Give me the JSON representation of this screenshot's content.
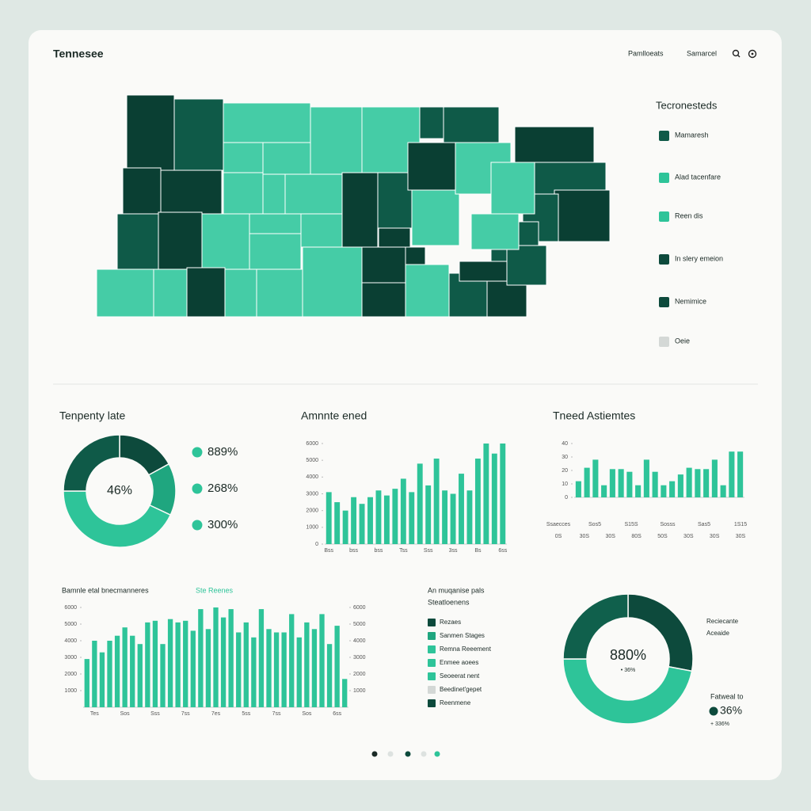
{
  "header": {
    "title": "Tennesee",
    "nav": [
      "Pamlloeats",
      "Samarcel"
    ]
  },
  "map_legend": {
    "title": "Tecronesteds",
    "items": [
      {
        "label": "Mamaresh",
        "color": "#0f5a48"
      },
      {
        "label": "Alad tacenfare",
        "color": "#2ec499"
      },
      {
        "label": "Reen dis",
        "color": "#2ec499"
      },
      {
        "label": "In slery emeion",
        "color": "#0d4a3c"
      },
      {
        "label": "Nemimice",
        "color": "#0d4a3c"
      },
      {
        "label": "Oeie",
        "color": "#d4d8d6"
      }
    ]
  },
  "side_legend": {
    "title": "An muqanise pals",
    "subtitle": "Steatloenens",
    "items": [
      {
        "label": "Rezaes",
        "color": "#0d4a3c"
      },
      {
        "label": "Sanmen Stages",
        "color": "#1fa67f"
      },
      {
        "label": "Remna Reeement",
        "color": "#2ec499"
      },
      {
        "label": "Enmee aoees",
        "color": "#2ec499"
      },
      {
        "label": "Seoeerat nent",
        "color": "#2ec499"
      },
      {
        "label": "Beedinet'gepet",
        "color": "#d4d8d6"
      },
      {
        "label": "Reenmene",
        "color": "#0d4a3c"
      }
    ]
  },
  "chart_data": [
    {
      "type": "pie",
      "title": "Tenpenty late",
      "center_label": "46%",
      "values": [
        17,
        15,
        43,
        25
      ],
      "colors": [
        "#0d4a3c",
        "#1fa67f",
        "#2ec499",
        "#0f5a48"
      ],
      "legend": [
        "889%",
        "268%",
        "300%"
      ],
      "legend_color": "#2ec499"
    },
    {
      "type": "bar",
      "title": "Amnnte ened",
      "color": "#2ec499",
      "categories": [
        "Bss",
        null,
        null,
        "bss",
        null,
        null,
        "bss",
        null,
        null,
        "Tss",
        null,
        null,
        "Sss",
        null,
        null,
        "3ss",
        null,
        null,
        "Bs",
        null,
        null,
        "6ss"
      ],
      "values": [
        3100,
        2500,
        2000,
        2800,
        2400,
        2800,
        3200,
        2900,
        3300,
        3900,
        3100,
        4800,
        3500,
        5100,
        3200,
        3000,
        4200,
        3200,
        5100,
        6000,
        5400,
        6000
      ],
      "ylim": [
        0,
        6000
      ],
      "yticks": [
        0,
        1000,
        2000,
        3000,
        4000,
        5000,
        6000
      ]
    },
    {
      "type": "bar",
      "title": "Tneed Astiemtes",
      "color": "#2ec499",
      "values": [
        12,
        22,
        28,
        9,
        21,
        21,
        19,
        9,
        28,
        19,
        9,
        12,
        17,
        22,
        21,
        21,
        28,
        9,
        34,
        34
      ],
      "ylim": [
        0,
        40
      ],
      "yticks": [
        0,
        10,
        20,
        30,
        40
      ],
      "x_labels_top": [
        "Ssaecces",
        "Sos5",
        "S15S",
        "Sosss",
        "Sas5",
        "1S15"
      ],
      "x_labels_bottom": [
        "0S",
        "30S",
        "30S",
        "80S",
        "50S",
        "30S",
        "30S",
        "30S"
      ]
    },
    {
      "type": "bar",
      "title": "Bamnle etal bnecmanneres",
      "legend": "Ste Reenes",
      "color": "#2ec499",
      "categories": [
        null,
        "Tes",
        null,
        null,
        null,
        "Sos",
        null,
        null,
        null,
        "Sss",
        null,
        null,
        null,
        "7ss",
        null,
        null,
        null,
        "7es",
        null,
        null,
        null,
        "5ss",
        null,
        null,
        null,
        "7ss",
        null,
        null,
        null,
        "Sos",
        null,
        null,
        null,
        "6ss",
        null
      ],
      "values": [
        2900,
        4000,
        3300,
        4000,
        4300,
        4800,
        4300,
        3800,
        5100,
        5200,
        3800,
        5300,
        5100,
        5200,
        4600,
        5900,
        4700,
        6000,
        5400,
        5900,
        4500,
        5100,
        4200,
        5900,
        4700,
        4500,
        4500,
        5600,
        4200,
        5100,
        4700,
        5600,
        3800,
        4900,
        1700
      ],
      "ylim": [
        0,
        6000
      ],
      "yticks": [
        1000,
        2000,
        3000,
        4000,
        5000,
        6000
      ],
      "y2lim": [
        0,
        6000
      ],
      "y2ticks": [
        1000,
        2000,
        3000,
        4000,
        5000,
        6000
      ]
    },
    {
      "type": "pie",
      "center_label": "880%",
      "center_sub": "• 36%",
      "values": [
        28,
        47,
        25
      ],
      "colors": [
        "#0d4a3c",
        "#2ec499",
        "#10604c"
      ],
      "notes": [
        "Reciecante",
        "Aceaide"
      ],
      "callout": {
        "title": "Fatweal to",
        "value": "36%",
        "sub": "+ 336%"
      }
    }
  ]
}
